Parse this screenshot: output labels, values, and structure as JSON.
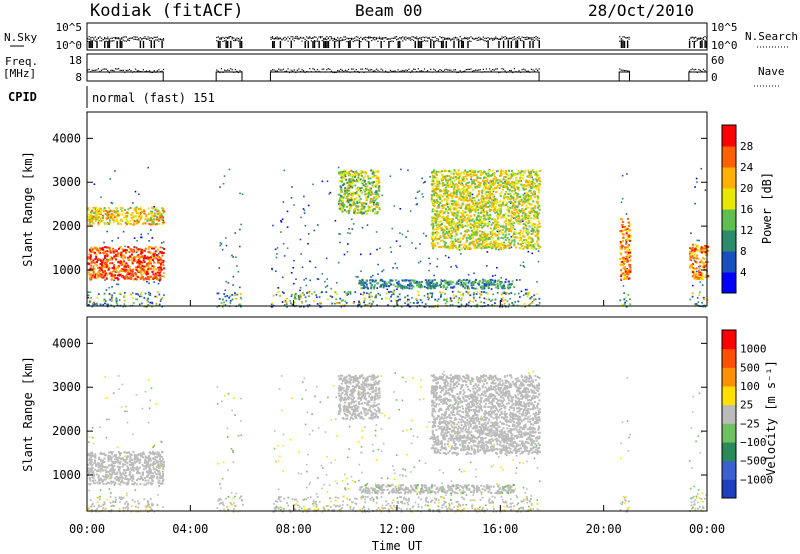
{
  "header": {
    "station": "Kodiak (fitACF)",
    "beam": "Beam 00",
    "date": "28/Oct/2010"
  },
  "small_panels": {
    "nsky_label": "N.Sky",
    "nsearch_label": "N.Search",
    "noise_ticks": [
      "10^5",
      "10^0"
    ],
    "freq_label_line1": "Freq.",
    "freq_label_line2": "[MHz]",
    "freq_ticks": [
      "18",
      "8"
    ],
    "nave_label": "Nave",
    "nave_ticks": [
      "60",
      "0"
    ],
    "cpid_label": "CPID",
    "cpid_value": "normal (fast) 151"
  },
  "x_axis": {
    "title": "Time UT",
    "tick_labels": [
      "00:00",
      "04:00",
      "08:00",
      "12:00",
      "16:00",
      "20:00",
      "00:00"
    ]
  },
  "chart_data": [
    {
      "type": "heatmap",
      "quantity": "Power",
      "ylabel": "Slant Range [km]",
      "xlabel": "",
      "xlim_hours": [
        0,
        24
      ],
      "ylim_km": [
        180,
        4600
      ],
      "y_ticks": [
        1000,
        2000,
        3000,
        4000
      ],
      "colorbar": {
        "label": "Power [dB]",
        "range": [
          0,
          32
        ],
        "tick_labels": [
          "4",
          "8",
          "12",
          "16",
          "20",
          "24",
          "28"
        ],
        "colors": [
          "#0000ff",
          "#1850c0",
          "#2d8a6a",
          "#5fc050",
          "#e8e800",
          "#ffb000",
          "#ff6000",
          "#ff0000"
        ]
      },
      "data_intervals_hours": [
        [
          0,
          2.95
        ],
        [
          5.0,
          6.0
        ],
        [
          7.1,
          17.5
        ],
        [
          20.6,
          21.0
        ],
        [
          23.3,
          24.0
        ]
      ],
      "features": [
        {
          "t": [
            0.0,
            2.95
          ],
          "range_km": [
            800,
            1550
          ],
          "level_db": 27
        },
        {
          "t": [
            0.0,
            2.95
          ],
          "range_km": [
            2050,
            2450
          ],
          "level_db": 20
        },
        {
          "t": [
            9.7,
            11.3
          ],
          "range_km": [
            2300,
            3300
          ],
          "level_db": 16
        },
        {
          "t": [
            13.3,
            17.5
          ],
          "range_km": [
            1500,
            3300
          ],
          "level_db": 18
        },
        {
          "t": [
            10.5,
            16.5
          ],
          "range_km": [
            600,
            800
          ],
          "level_db": 10
        },
        {
          "t": [
            20.6,
            21.0
          ],
          "range_km": [
            800,
            2200
          ],
          "level_db": 24
        },
        {
          "t": [
            23.3,
            24.0
          ],
          "range_km": [
            800,
            1600
          ],
          "level_db": 24
        }
      ]
    },
    {
      "type": "heatmap",
      "quantity": "Velocity",
      "ylabel": "Slant Range [km]",
      "xlabel": "Time UT",
      "xlim_hours": [
        0,
        24
      ],
      "ylim_km": [
        180,
        4600
      ],
      "y_ticks": [
        1000,
        2000,
        3000,
        4000
      ],
      "colorbar": {
        "label": "Velocity [m s⁻¹]",
        "range": [
          -1200,
          1200
        ],
        "tick_labels": [
          "1000",
          "500",
          "100",
          "25",
          "−25",
          "−100",
          "−500",
          "−1000"
        ],
        "colors": [
          "#1f3fbf",
          "#3a60d0",
          "#2a8a5a",
          "#6fc060",
          "#bbbbbb",
          "#ffe000",
          "#ff9000",
          "#ff5000",
          "#ff0000"
        ]
      },
      "data_intervals_hours": [
        [
          0,
          2.95
        ],
        [
          5.0,
          6.0
        ],
        [
          7.1,
          17.5
        ],
        [
          20.6,
          21.0
        ],
        [
          23.3,
          24.0
        ]
      ],
      "features": [
        {
          "t": [
            0.0,
            2.95
          ],
          "range_km": [
            800,
            1550
          ],
          "velocity_ms": 0
        },
        {
          "t": [
            9.7,
            11.3
          ],
          "range_km": [
            2300,
            3300
          ],
          "velocity_ms": 0
        },
        {
          "t": [
            13.3,
            17.5
          ],
          "range_km": [
            1500,
            3300
          ],
          "velocity_ms": 0
        },
        {
          "t": [
            10.5,
            16.5
          ],
          "range_km": [
            600,
            800
          ],
          "velocity_ms": -100
        }
      ]
    }
  ]
}
